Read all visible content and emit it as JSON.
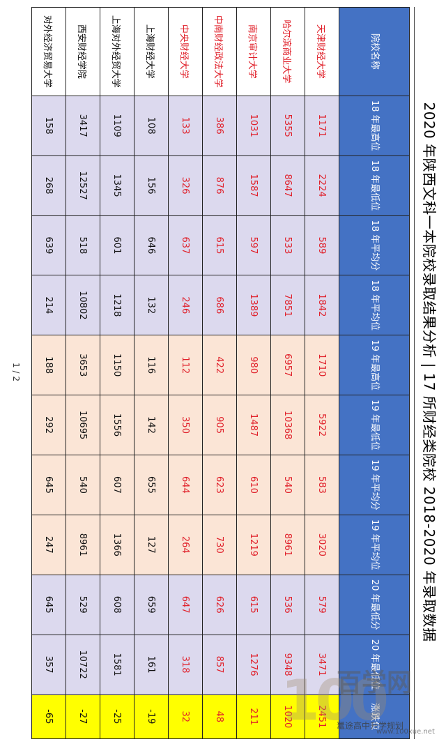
{
  "title": "2020 年陕西文科一本院校录取结果分析 | 17 所财经类院校 2018-2020 年录取数据",
  "page_number": "1 / 2",
  "watermark": {
    "logo_text": "100",
    "brand": "百学网",
    "account": "鼍途高中升学规划",
    "url": "www.100xue.net"
  },
  "colors": {
    "header": "#4472c4",
    "band18": "#dcd9ee",
    "band19": "#fbe5d6",
    "diff": "#ffff00",
    "highlight_red": "#e0202a"
  },
  "table": {
    "headers": [
      "院校名称",
      "18 年最高位",
      "18 年最低位",
      "18 年平均分",
      "18 年平均位",
      "19 年最高位",
      "19 年最低位",
      "19 年平均分",
      "19 年平均位",
      "20 年最低分",
      "20 年最低位",
      "涨跌位"
    ],
    "rows": [
      {
        "name": "天津财经大学",
        "red": true,
        "cells": [
          "1171",
          "2224",
          "589",
          "1842",
          "1710",
          "5922",
          "583",
          "3020",
          "579",
          "3471",
          "2451"
        ]
      },
      {
        "name": "哈尔滨商业大学",
        "red": true,
        "cells": [
          "5355",
          "8647",
          "533",
          "7851",
          "6957",
          "10368",
          "540",
          "8961",
          "536",
          "9348",
          "1020"
        ]
      },
      {
        "name": "南京审计大学",
        "red": true,
        "cells": [
          "1031",
          "1587",
          "597",
          "1389",
          "980",
          "1487",
          "610",
          "1219",
          "615",
          "1276",
          "211"
        ]
      },
      {
        "name": "中南财经政法大学",
        "red": true,
        "cells": [
          "386",
          "876",
          "615",
          "686",
          "422",
          "905",
          "623",
          "730",
          "626",
          "857",
          "48"
        ]
      },
      {
        "name": "中央财经大学",
        "red": true,
        "cells": [
          "133",
          "326",
          "637",
          "246",
          "112",
          "350",
          "644",
          "264",
          "647",
          "318",
          "32"
        ]
      },
      {
        "name": "上海财经大学",
        "red": false,
        "cells": [
          "108",
          "156",
          "646",
          "132",
          "116",
          "142",
          "655",
          "127",
          "659",
          "161",
          "-19"
        ]
      },
      {
        "name": "上海对外经贸大学",
        "red": false,
        "cells": [
          "1109",
          "1345",
          "601",
          "1218",
          "1150",
          "1556",
          "607",
          "1366",
          "608",
          "1581",
          "-25"
        ]
      },
      {
        "name": "西安财经学院",
        "red": false,
        "cells": [
          "3417",
          "12527",
          "518",
          "10802",
          "3653",
          "10695",
          "540",
          "8961",
          "529",
          "10722",
          "-27"
        ]
      },
      {
        "name": "对外经济贸易大学",
        "red": false,
        "cells": [
          "158",
          "268",
          "639",
          "214",
          "188",
          "292",
          "645",
          "247",
          "645",
          "357",
          "-65"
        ]
      }
    ]
  }
}
